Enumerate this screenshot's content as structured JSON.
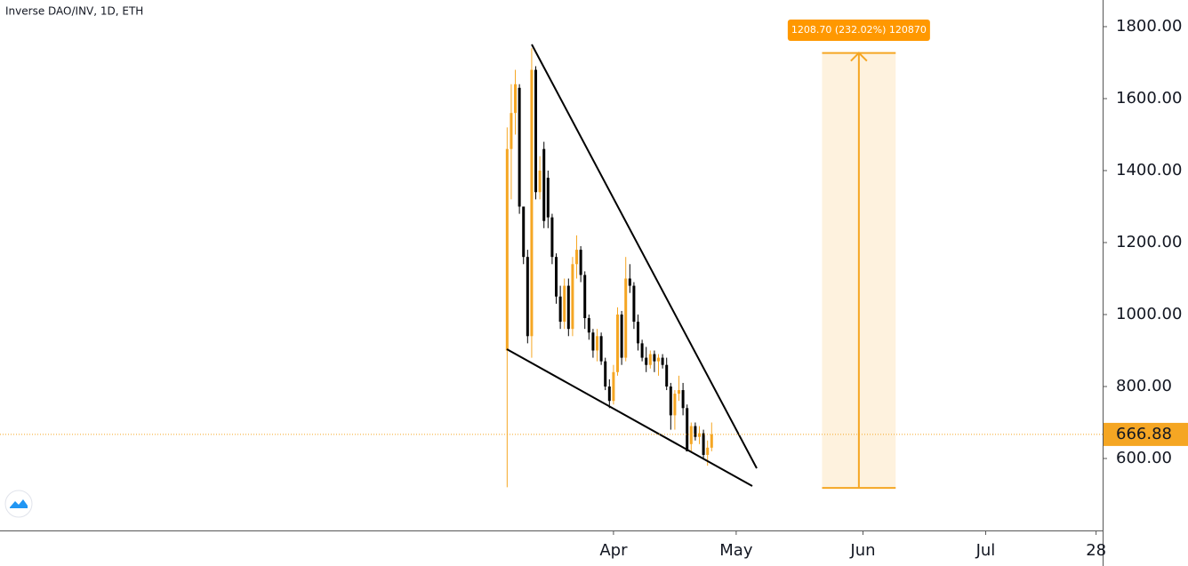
{
  "chart_data": {
    "type": "candlestick",
    "title": "Inverse DAO/INV, 1D, ETH",
    "x": [
      -26,
      -25,
      -24,
      -23,
      -22,
      -21,
      -20,
      -19,
      -18,
      -17,
      -16,
      -15,
      -14,
      -13,
      -12,
      -11,
      -10,
      -9,
      -8,
      -7,
      -6,
      -5,
      -4,
      -3,
      -2,
      -1,
      0,
      1,
      2,
      3,
      4,
      5,
      6,
      7,
      8,
      9,
      10,
      11,
      12,
      13,
      14,
      15,
      16,
      17,
      18,
      19,
      20,
      21,
      22,
      23,
      24
    ],
    "open": [
      900,
      1460,
      1560,
      1630,
      1300,
      1160,
      940,
      1680,
      1340,
      1460,
      1380,
      1270,
      1160,
      1050,
      980,
      1080,
      960,
      1140,
      1180,
      1110,
      990,
      950,
      900,
      940,
      870,
      800,
      760,
      840,
      1000,
      880,
      1100,
      1080,
      980,
      920,
      880,
      860,
      890,
      870,
      880,
      860,
      800,
      720,
      780,
      790,
      740,
      640,
      690,
      660,
      670,
      610,
      630
    ],
    "high": [
      1520,
      1640,
      1680,
      1640,
      1300,
      1180,
      1740,
      1690,
      1440,
      1480,
      1400,
      1280,
      1170,
      1080,
      1100,
      1100,
      1160,
      1220,
      1190,
      1120,
      1000,
      960,
      960,
      950,
      880,
      820,
      860,
      1020,
      1010,
      1160,
      1140,
      1090,
      1000,
      930,
      910,
      900,
      900,
      890,
      890,
      880,
      810,
      790,
      830,
      810,
      750,
      700,
      700,
      690,
      680,
      650,
      700
    ],
    "low": [
      520,
      1320,
      1500,
      1280,
      1140,
      920,
      880,
      1320,
      1320,
      1240,
      1240,
      1140,
      1030,
      960,
      960,
      940,
      940,
      1100,
      1090,
      960,
      930,
      880,
      870,
      860,
      790,
      740,
      750,
      830,
      860,
      870,
      1060,
      960,
      900,
      870,
      840,
      850,
      840,
      830,
      850,
      790,
      680,
      680,
      760,
      720,
      620,
      620,
      650,
      640,
      600,
      580,
      620
    ],
    "close": [
      1460,
      1560,
      1640,
      1300,
      1160,
      940,
      1680,
      1340,
      1400,
      1260,
      1270,
      1160,
      1050,
      980,
      1080,
      960,
      1140,
      1180,
      1110,
      990,
      950,
      900,
      940,
      870,
      800,
      760,
      840,
      1000,
      880,
      1100,
      1080,
      980,
      920,
      880,
      860,
      890,
      870,
      880,
      860,
      800,
      720,
      780,
      790,
      740,
      620,
      690,
      660,
      670,
      610,
      630,
      667
    ],
    "up_color": "#f5a623",
    "down_color": "#000000",
    "xlim": [
      -150,
      119.6
    ],
    "xticks": [
      {
        "value": 0,
        "label": "Apr"
      },
      {
        "value": 30,
        "label": "May"
      },
      {
        "value": 61,
        "label": "Jun"
      },
      {
        "value": 91,
        "label": "Jul"
      },
      {
        "value": 118,
        "label": "28"
      }
    ],
    "ylim": [
      400,
      1874
    ],
    "yticks": [
      {
        "value": 600,
        "label": "600.00"
      },
      {
        "value": 800,
        "label": "800.00"
      },
      {
        "value": 1000,
        "label": "1000.00"
      },
      {
        "value": 1200,
        "label": "1200.00"
      },
      {
        "value": 1400,
        "label": "1400.00"
      },
      {
        "value": 1600,
        "label": "1600.00"
      },
      {
        "value": 1800,
        "label": "1800.00"
      }
    ],
    "last_price": {
      "value": 666.88,
      "label": "666.88"
    },
    "measure": {
      "label": "1208.70 (232.02%) 120870",
      "from": 518.2,
      "to": 1726.9,
      "x": [
        51,
        69
      ]
    }
  }
}
